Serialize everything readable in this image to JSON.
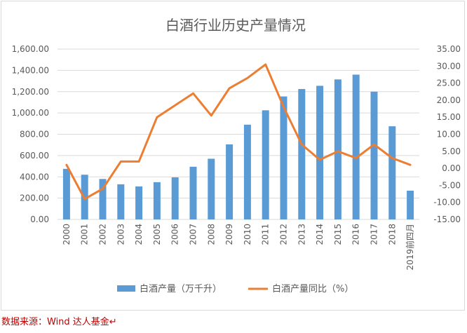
{
  "source_note": "数据来源：Wind 达人基金↵",
  "colors": {
    "bar": "#5b9bd5",
    "line": "#ed7d31",
    "grid": "#d9d9d9",
    "axis_text": "#595959",
    "title": "#595959"
  },
  "chart_data": {
    "type": "bar",
    "title": "白酒行业历史产量情况",
    "categories": [
      "2000",
      "2001",
      "2002",
      "2003",
      "2004",
      "2005",
      "2006",
      "2007",
      "2008",
      "2009",
      "2010",
      "2011",
      "2012",
      "2013",
      "2014",
      "2015",
      "2016",
      "2017",
      "2018",
      "2019前四月"
    ],
    "series": [
      {
        "name": "白酒产量（万千升）",
        "type": "bar",
        "axis": "left",
        "values": [
          475,
          420,
          380,
          330,
          310,
          350,
          395,
          495,
          570,
          705,
          890,
          1025,
          1155,
          1225,
          1255,
          1315,
          1360,
          1200,
          875,
          270
        ]
      },
      {
        "name": "白酒产量同比（%）",
        "type": "line",
        "axis": "right",
        "values": [
          1.0,
          -9.0,
          -6.0,
          2.0,
          2.0,
          15.0,
          18.5,
          22.0,
          15.5,
          23.5,
          26.5,
          30.5,
          18.0,
          7.0,
          2.5,
          5.0,
          3.0,
          7.0,
          3.0,
          1.0
        ]
      }
    ],
    "y_left": {
      "ylim": [
        0,
        1600
      ],
      "ticks": [
        "0.00",
        "200.00",
        "400.00",
        "600.00",
        "800.00",
        "1,000.00",
        "1,200.00",
        "1,400.00",
        "1,600.00"
      ]
    },
    "y_right": {
      "ylim": [
        -15,
        35
      ],
      "ticks": [
        "-15.00",
        "-10.00",
        "-5.00",
        "0.00",
        "5.00",
        "10.00",
        "15.00",
        "20.00",
        "25.00",
        "30.00",
        "35.00"
      ]
    },
    "grid": true,
    "legend_position": "bottom"
  }
}
